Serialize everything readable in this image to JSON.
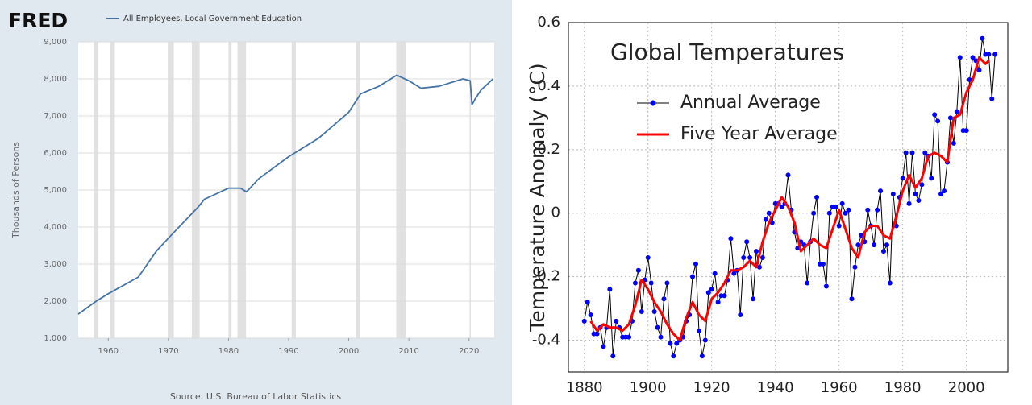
{
  "chart_data": [
    {
      "type": "line",
      "logo": "FRED",
      "ylabel": "Thousands of Persons",
      "source": "Source: U.S. Bureau of Labor Statistics",
      "x": [
        1955,
        1958,
        1960,
        1965,
        1968,
        1970,
        1975,
        1976,
        1980,
        1982,
        1983,
        1985,
        1990,
        1995,
        2000,
        2002,
        2005,
        2008,
        2010,
        2012,
        2015,
        2019,
        2020.2,
        2020.5,
        2021,
        2022,
        2024
      ],
      "series": [
        {
          "name": "All Employees, Local Government Education",
          "color": "#4572a7",
          "values": [
            1650,
            2000,
            2200,
            2650,
            3350,
            3700,
            4550,
            4750,
            5050,
            5050,
            4950,
            5300,
            5900,
            6400,
            7100,
            7600,
            7800,
            8100,
            7950,
            7750,
            7800,
            8000,
            7950,
            7300,
            7450,
            7700,
            8000
          ]
        }
      ],
      "recessions": [
        [
          1957.6,
          1958.3
        ],
        [
          1960.3,
          1961.1
        ],
        [
          1969.9,
          1970.9
        ],
        [
          1973.9,
          1975.2
        ],
        [
          1980.0,
          1980.5
        ],
        [
          1981.5,
          1982.9
        ],
        [
          1990.5,
          1991.2
        ],
        [
          2001.2,
          2001.9
        ],
        [
          2007.9,
          2009.5
        ],
        [
          2020.1,
          2020.3
        ]
      ],
      "recession_color": "#e1e1e1",
      "xlim": [
        1955,
        2024.2
      ],
      "xticks": [
        1960,
        1970,
        1980,
        1990,
        2000,
        2010,
        2020
      ],
      "ylim": [
        1000,
        9000
      ],
      "yticks": [
        {
          "value": 1000,
          "label": "1,000"
        },
        {
          "value": 2000,
          "label": "2,000"
        },
        {
          "value": 3000,
          "label": "3,000"
        },
        {
          "value": 4000,
          "label": "4,000"
        },
        {
          "value": 5000,
          "label": "5,000"
        },
        {
          "value": 6000,
          "label": "6,000"
        },
        {
          "value": 7000,
          "label": "7,000"
        },
        {
          "value": 8000,
          "label": "8,000"
        },
        {
          "value": 9000,
          "label": "9,000"
        }
      ],
      "grid": "y"
    },
    {
      "type": "line",
      "title": "Global Temperatures",
      "ylabel": "Temperature Anomaly (°C)",
      "series": [
        {
          "name": "Annual Average",
          "color": "#0000ff",
          "line_color": "#000000",
          "marker": true,
          "x": [
            1880,
            1881,
            1882,
            1883,
            1884,
            1885,
            1886,
            1887,
            1888,
            1889,
            1890,
            1891,
            1892,
            1893,
            1894,
            1895,
            1896,
            1897,
            1898,
            1899,
            1900,
            1901,
            1902,
            1903,
            1904,
            1905,
            1906,
            1907,
            1908,
            1909,
            1910,
            1911,
            1912,
            1913,
            1914,
            1915,
            1916,
            1917,
            1918,
            1919,
            1920,
            1921,
            1922,
            1923,
            1924,
            1925,
            1926,
            1927,
            1928,
            1929,
            1930,
            1931,
            1932,
            1933,
            1934,
            1935,
            1936,
            1937,
            1938,
            1939,
            1940,
            1941,
            1942,
            1943,
            1944,
            1945,
            1946,
            1947,
            1948,
            1949,
            1950,
            1951,
            1952,
            1953,
            1954,
            1955,
            1956,
            1957,
            1958,
            1959,
            1960,
            1961,
            1962,
            1963,
            1964,
            1965,
            1966,
            1967,
            1968,
            1969,
            1970,
            1971,
            1972,
            1973,
            1974,
            1975,
            1976,
            1977,
            1978,
            1979,
            1980,
            1981,
            1982,
            1983,
            1984,
            1985,
            1986,
            1987,
            1988,
            1989,
            1990,
            1991,
            1992,
            1993,
            1994,
            1995,
            1996,
            1997,
            1998,
            1999,
            2000,
            2001,
            2002,
            2003,
            2004,
            2005,
            2006,
            2007,
            2008,
            2009
          ],
          "values": [
            -0.34,
            -0.28,
            -0.32,
            -0.38,
            -0.38,
            -0.36,
            -0.42,
            -0.36,
            -0.24,
            -0.45,
            -0.34,
            -0.36,
            -0.39,
            -0.39,
            -0.39,
            -0.34,
            -0.22,
            -0.18,
            -0.31,
            -0.21,
            -0.14,
            -0.22,
            -0.31,
            -0.36,
            -0.39,
            -0.27,
            -0.22,
            -0.41,
            -0.45,
            -0.41,
            -0.4,
            -0.39,
            -0.34,
            -0.32,
            -0.2,
            -0.16,
            -0.37,
            -0.45,
            -0.4,
            -0.25,
            -0.24,
            -0.19,
            -0.28,
            -0.26,
            -0.26,
            -0.21,
            -0.08,
            -0.19,
            -0.18,
            -0.32,
            -0.14,
            -0.09,
            -0.14,
            -0.27,
            -0.12,
            -0.17,
            -0.14,
            -0.02,
            0.0,
            -0.03,
            0.03,
            0.03,
            0.02,
            0.03,
            0.12,
            0.01,
            -0.06,
            -0.11,
            -0.09,
            -0.1,
            -0.22,
            -0.09,
            0.0,
            0.05,
            -0.16,
            -0.16,
            -0.23,
            0.0,
            0.02,
            0.02,
            -0.04,
            0.03,
            0.0,
            0.01,
            -0.27,
            -0.17,
            -0.1,
            -0.07,
            -0.09,
            0.01,
            -0.04,
            -0.1,
            0.01,
            0.07,
            -0.12,
            -0.1,
            -0.22,
            0.06,
            -0.04,
            0.05,
            0.11,
            0.19,
            0.03,
            0.19,
            0.06,
            0.04,
            0.09,
            0.19,
            0.18,
            0.11,
            0.31,
            0.29,
            0.06,
            0.07,
            0.16,
            0.3,
            0.22,
            0.32,
            0.49,
            0.26,
            0.26,
            0.42,
            0.49,
            0.48,
            0.45,
            0.55,
            0.5,
            0.5,
            0.36,
            0.5
          ]
        },
        {
          "name": "Five Year Average",
          "color": "#ff0000",
          "marker": false,
          "x": [
            1882,
            1884,
            1886,
            1888,
            1890,
            1892,
            1894,
            1896,
            1898,
            1900,
            1902,
            1904,
            1906,
            1908,
            1910,
            1912,
            1914,
            1916,
            1918,
            1920,
            1922,
            1924,
            1926,
            1928,
            1930,
            1932,
            1934,
            1936,
            1938,
            1940,
            1942,
            1944,
            1946,
            1948,
            1950,
            1952,
            1954,
            1956,
            1958,
            1960,
            1962,
            1964,
            1966,
            1968,
            1970,
            1972,
            1974,
            1976,
            1978,
            1980,
            1982,
            1984,
            1986,
            1988,
            1990,
            1992,
            1994,
            1996,
            1998,
            2000,
            2002,
            2004,
            2006,
            2007
          ],
          "values": [
            -0.34,
            -0.37,
            -0.35,
            -0.36,
            -0.36,
            -0.37,
            -0.35,
            -0.29,
            -0.21,
            -0.24,
            -0.28,
            -0.31,
            -0.35,
            -0.38,
            -0.4,
            -0.33,
            -0.28,
            -0.32,
            -0.34,
            -0.27,
            -0.25,
            -0.22,
            -0.18,
            -0.18,
            -0.17,
            -0.15,
            -0.17,
            -0.09,
            -0.03,
            0.01,
            0.05,
            0.02,
            -0.03,
            -0.12,
            -0.1,
            -0.08,
            -0.1,
            -0.11,
            -0.05,
            0.01,
            -0.05,
            -0.11,
            -0.14,
            -0.06,
            -0.04,
            -0.04,
            -0.07,
            -0.08,
            -0.01,
            0.07,
            0.12,
            0.08,
            0.11,
            0.18,
            0.19,
            0.18,
            0.16,
            0.3,
            0.31,
            0.38,
            0.42,
            0.49,
            0.47,
            0.48
          ]
        }
      ],
      "xlim": [
        1875,
        2013
      ],
      "xticks": [
        1880,
        1900,
        1920,
        1940,
        1960,
        1980,
        2000
      ],
      "ylim": [
        -0.5,
        0.6
      ],
      "yticks": [
        -0.4,
        -0.2,
        0,
        0.2,
        0.4,
        0.6
      ],
      "grid": "xy"
    }
  ]
}
